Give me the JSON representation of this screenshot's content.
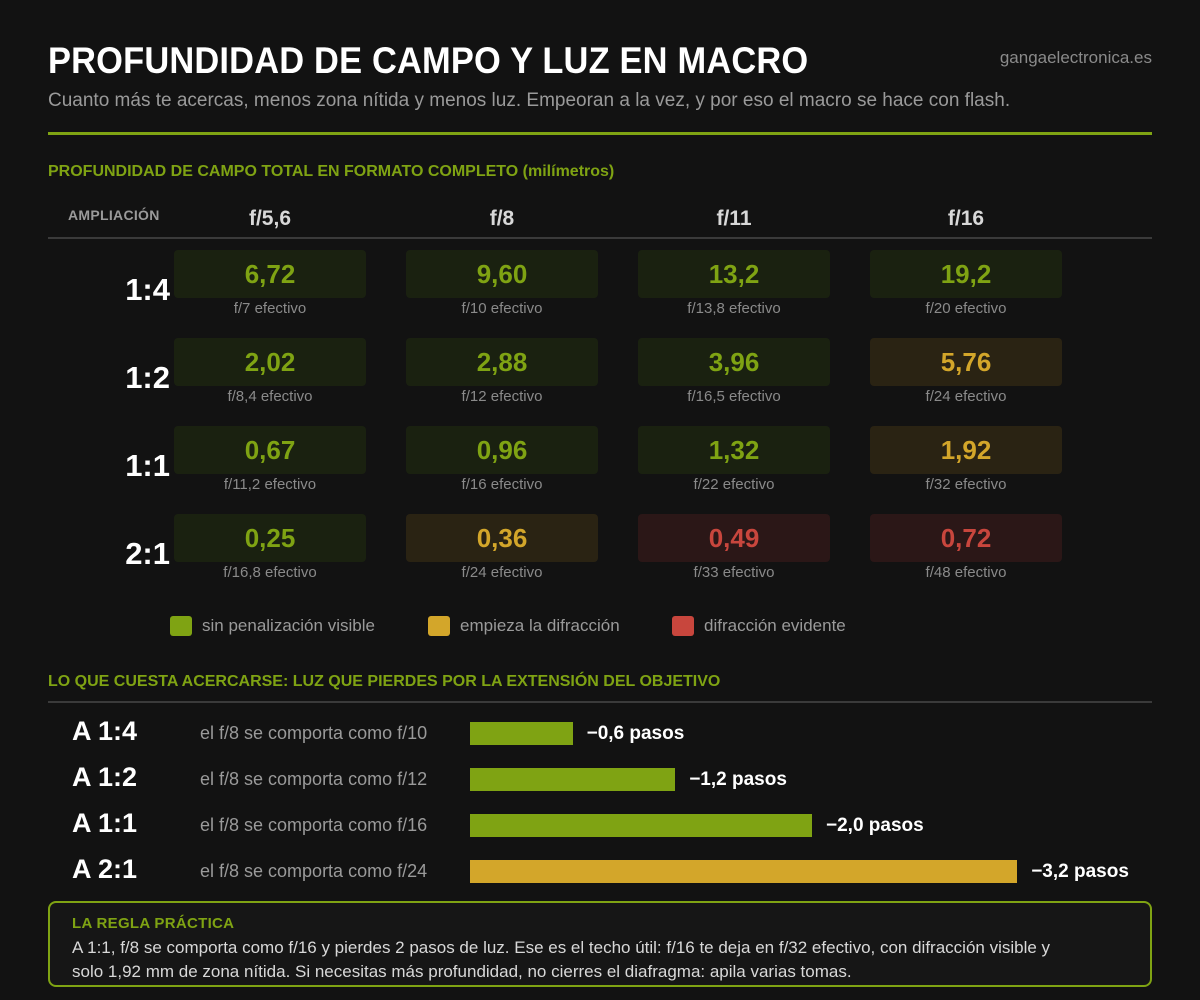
{
  "header": {
    "title": "PROFUNDIDAD DE CAMPO Y LUZ EN MACRO",
    "subtitle": "Cuanto más te acercas, menos zona nítida y menos luz. Empeoran a la vez, y por eso el macro se hace con flash.",
    "site": "gangaelectronica.es"
  },
  "colors": {
    "green": "#7fa313",
    "yellow": "#d3a62a",
    "red": "#c8463d",
    "background": "#121212"
  },
  "chart_data": [
    {
      "type": "table",
      "title": "PROFUNDIDAD DE CAMPO TOTAL EN FORMATO COMPLETO (milímetros)",
      "row_header": "AMPLIACIÓN",
      "columns": [
        "f/5,6",
        "f/8",
        "f/11",
        "f/16"
      ],
      "rows": [
        {
          "label": "1:4",
          "values": [
            "6,72",
            "9,60",
            "13,2",
            "19,2"
          ],
          "effective": [
            "f/7 efectivo",
            "f/10 efectivo",
            "f/13,8 efectivo",
            "f/20 efectivo"
          ],
          "status": [
            "green",
            "green",
            "green",
            "green"
          ]
        },
        {
          "label": "1:2",
          "values": [
            "2,02",
            "2,88",
            "3,96",
            "5,76"
          ],
          "effective": [
            "f/8,4 efectivo",
            "f/12 efectivo",
            "f/16,5 efectivo",
            "f/24 efectivo"
          ],
          "status": [
            "green",
            "green",
            "green",
            "yellow"
          ]
        },
        {
          "label": "1:1",
          "values": [
            "0,67",
            "0,96",
            "1,32",
            "1,92"
          ],
          "effective": [
            "f/11,2 efectivo",
            "f/16 efectivo",
            "f/22 efectivo",
            "f/32 efectivo"
          ],
          "status": [
            "green",
            "green",
            "green",
            "yellow"
          ]
        },
        {
          "label": "2:1",
          "values": [
            "0,25",
            "0,36",
            "0,49",
            "0,72"
          ],
          "effective": [
            "f/16,8 efectivo",
            "f/24 efectivo",
            "f/33 efectivo",
            "f/48 efectivo"
          ],
          "status": [
            "green",
            "yellow",
            "red",
            "red"
          ]
        }
      ],
      "legend": [
        {
          "label": "sin penalización visible",
          "color": "#7fa313"
        },
        {
          "label": "empieza la difracción",
          "color": "#d3a62a"
        },
        {
          "label": "difracción evidente",
          "color": "#c8463d"
        }
      ]
    },
    {
      "type": "bar",
      "orientation": "horizontal",
      "title": "LO QUE CUESTA ACERCARSE: LUZ QUE PIERDES POR LA EXTENSIÓN DEL OBJETIVO",
      "categories": [
        "A 1:4",
        "A 1:2",
        "A 1:1",
        "A 2:1"
      ],
      "descriptions": [
        "el f/8 se comporta como f/10",
        "el f/8 se comporta como f/12",
        "el f/8 se comporta como f/16",
        "el f/8 se comporta como f/24"
      ],
      "values": [
        -0.6,
        -1.2,
        -2.0,
        -3.2
      ],
      "value_labels": [
        "−0,6 pasos",
        "−1,2 pasos",
        "−2,0 pasos",
        "−3,2 pasos"
      ],
      "colors": [
        "#7fa313",
        "#7fa313",
        "#7fa313",
        "#d3a62a"
      ]
    }
  ],
  "rule": {
    "title": "LA REGLA PRÁCTICA",
    "text": "A 1:1, f/8 se comporta como f/16 y pierdes 2 pasos de luz. Ese es el techo útil: f/16 te deja en f/32 efectivo, con difracción visible y solo 1,92 mm de zona nítida. Si necesitas más profundidad, no cierres el diafragma: apila varias tomas."
  }
}
